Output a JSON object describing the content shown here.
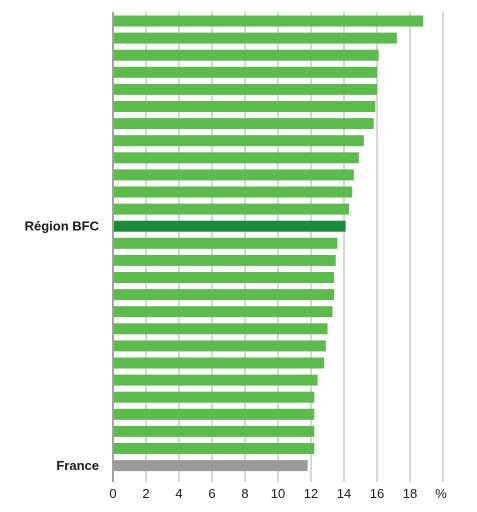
{
  "chart_data": {
    "type": "bar",
    "orientation": "horizontal",
    "unit": "%",
    "xlim": [
      0,
      20
    ],
    "xticks": [
      "0",
      "2",
      "4",
      "6",
      "8",
      "10",
      "12",
      "14",
      "16",
      "18"
    ],
    "grid": "vertical",
    "categories": [
      "",
      "",
      "",
      "",
      "",
      "",
      "",
      "",
      "",
      "",
      "",
      "",
      "Région BFC",
      "",
      "",
      "",
      "",
      "",
      "",
      "",
      "",
      "",
      "",
      "",
      "",
      "",
      "France"
    ],
    "values": [
      18.8,
      17.2,
      16.1,
      16.0,
      16.0,
      15.9,
      15.8,
      15.2,
      14.9,
      14.6,
      14.5,
      14.3,
      14.1,
      13.6,
      13.5,
      13.4,
      13.4,
      13.3,
      13.0,
      12.9,
      12.8,
      12.4,
      12.2,
      12.2,
      12.2,
      12.2,
      11.8
    ],
    "highlight": {
      "Région BFC": "#1e8a3c",
      "France": "#9a9a9a"
    },
    "bar_color": "#5cbb4c"
  }
}
